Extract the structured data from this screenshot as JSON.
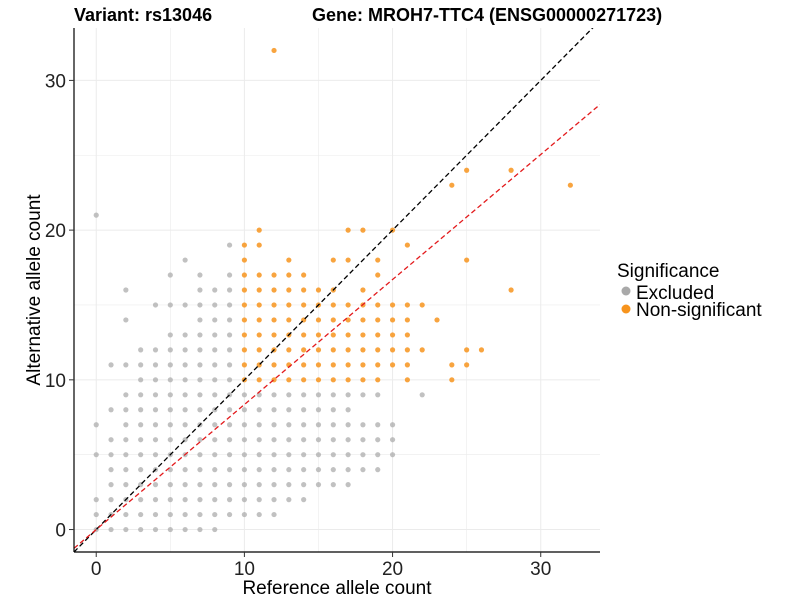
{
  "chart_data": {
    "type": "scatter",
    "title_left": "Variant: rs13046",
    "title_right": "Gene: MROH7-TTC4 (ENSG00000271723)",
    "xlabel": "Reference allele count",
    "ylabel": "Alternative allele count",
    "xlim": [
      -1.5,
      34
    ],
    "ylim": [
      -1.5,
      33.5
    ],
    "xticks": [
      0,
      10,
      20,
      30
    ],
    "yticks": [
      0,
      10,
      20,
      30
    ],
    "grid": true,
    "legend": {
      "title": "Significance",
      "position": "right",
      "entries": [
        {
          "label": "Excluded",
          "color": "#a9a9a9"
        },
        {
          "label": "Non-significant",
          "color": "#f7941d"
        }
      ]
    },
    "reference_lines": [
      {
        "style": "dashed",
        "color": "#000000",
        "slope": 1,
        "intercept": 0
      },
      {
        "style": "dashed",
        "color": "#e31a1c",
        "slope": 0.835,
        "intercept": 0
      }
    ],
    "series": [
      {
        "name": "Excluded",
        "color": "#a9a9a9",
        "points": [
          [
            0,
            21
          ],
          [
            0,
            7
          ],
          [
            0,
            5
          ],
          [
            0,
            2
          ],
          [
            0,
            1
          ],
          [
            0,
            0
          ],
          [
            1,
            11
          ],
          [
            1,
            8
          ],
          [
            1,
            6
          ],
          [
            1,
            5
          ],
          [
            1,
            4
          ],
          [
            1,
            3
          ],
          [
            1,
            2
          ],
          [
            1,
            1
          ],
          [
            1,
            0
          ],
          [
            2,
            16
          ],
          [
            2,
            14
          ],
          [
            2,
            11
          ],
          [
            2,
            9
          ],
          [
            2,
            8
          ],
          [
            2,
            7
          ],
          [
            2,
            6
          ],
          [
            2,
            5
          ],
          [
            2,
            4
          ],
          [
            2,
            3
          ],
          [
            2,
            2
          ],
          [
            2,
            1
          ],
          [
            2,
            0
          ],
          [
            3,
            12
          ],
          [
            3,
            11
          ],
          [
            3,
            10
          ],
          [
            3,
            9
          ],
          [
            3,
            8
          ],
          [
            3,
            7
          ],
          [
            3,
            6
          ],
          [
            3,
            5
          ],
          [
            3,
            4
          ],
          [
            3,
            3
          ],
          [
            3,
            2
          ],
          [
            3,
            1
          ],
          [
            3,
            0
          ],
          [
            4,
            15
          ],
          [
            4,
            12
          ],
          [
            4,
            11
          ],
          [
            4,
            10
          ],
          [
            4,
            9
          ],
          [
            4,
            8
          ],
          [
            4,
            7
          ],
          [
            4,
            6
          ],
          [
            4,
            5
          ],
          [
            4,
            4
          ],
          [
            4,
            3
          ],
          [
            4,
            2
          ],
          [
            4,
            1
          ],
          [
            4,
            0
          ],
          [
            5,
            17
          ],
          [
            5,
            15
          ],
          [
            5,
            13
          ],
          [
            5,
            12
          ],
          [
            5,
            11
          ],
          [
            5,
            10
          ],
          [
            5,
            9
          ],
          [
            5,
            8
          ],
          [
            5,
            7
          ],
          [
            5,
            6
          ],
          [
            5,
            5
          ],
          [
            5,
            4
          ],
          [
            5,
            3
          ],
          [
            5,
            2
          ],
          [
            5,
            1
          ],
          [
            5,
            0
          ],
          [
            6,
            18
          ],
          [
            6,
            15
          ],
          [
            6,
            13
          ],
          [
            6,
            12
          ],
          [
            6,
            11
          ],
          [
            6,
            10
          ],
          [
            6,
            9
          ],
          [
            6,
            8
          ],
          [
            6,
            7
          ],
          [
            6,
            6
          ],
          [
            6,
            5
          ],
          [
            6,
            4
          ],
          [
            6,
            3
          ],
          [
            6,
            2
          ],
          [
            6,
            1
          ],
          [
            6,
            0
          ],
          [
            7,
            17
          ],
          [
            7,
            16
          ],
          [
            7,
            15
          ],
          [
            7,
            14
          ],
          [
            7,
            13
          ],
          [
            7,
            12
          ],
          [
            7,
            11
          ],
          [
            7,
            10
          ],
          [
            7,
            9
          ],
          [
            7,
            8
          ],
          [
            7,
            7
          ],
          [
            7,
            6
          ],
          [
            7,
            5
          ],
          [
            7,
            4
          ],
          [
            7,
            3
          ],
          [
            7,
            2
          ],
          [
            7,
            1
          ],
          [
            7,
            0
          ],
          [
            8,
            16
          ],
          [
            8,
            15
          ],
          [
            8,
            14
          ],
          [
            8,
            13
          ],
          [
            8,
            12
          ],
          [
            8,
            11
          ],
          [
            8,
            10
          ],
          [
            8,
            9
          ],
          [
            8,
            8
          ],
          [
            8,
            7
          ],
          [
            8,
            6
          ],
          [
            8,
            5
          ],
          [
            8,
            4
          ],
          [
            8,
            3
          ],
          [
            8,
            2
          ],
          [
            8,
            1
          ],
          [
            8,
            0
          ],
          [
            9,
            19
          ],
          [
            9,
            17
          ],
          [
            9,
            16
          ],
          [
            9,
            15
          ],
          [
            9,
            14
          ],
          [
            9,
            13
          ],
          [
            9,
            12
          ],
          [
            9,
            11
          ],
          [
            9,
            10
          ],
          [
            9,
            9
          ],
          [
            9,
            8
          ],
          [
            9,
            7
          ],
          [
            9,
            6
          ],
          [
            9,
            5
          ],
          [
            9,
            4
          ],
          [
            9,
            3
          ],
          [
            9,
            2
          ],
          [
            9,
            1
          ],
          [
            10,
            9
          ],
          [
            10,
            8
          ],
          [
            10,
            7
          ],
          [
            10,
            6
          ],
          [
            10,
            5
          ],
          [
            10,
            4
          ],
          [
            10,
            3
          ],
          [
            10,
            2
          ],
          [
            10,
            1
          ],
          [
            11,
            9
          ],
          [
            11,
            8
          ],
          [
            11,
            7
          ],
          [
            11,
            6
          ],
          [
            11,
            5
          ],
          [
            11,
            4
          ],
          [
            11,
            3
          ],
          [
            11,
            2
          ],
          [
            11,
            1
          ],
          [
            12,
            9
          ],
          [
            12,
            8
          ],
          [
            12,
            7
          ],
          [
            12,
            6
          ],
          [
            12,
            5
          ],
          [
            12,
            4
          ],
          [
            12,
            3
          ],
          [
            12,
            2
          ],
          [
            12,
            1
          ],
          [
            13,
            9
          ],
          [
            13,
            8
          ],
          [
            13,
            7
          ],
          [
            13,
            6
          ],
          [
            13,
            5
          ],
          [
            13,
            4
          ],
          [
            13,
            3
          ],
          [
            13,
            2
          ],
          [
            14,
            9
          ],
          [
            14,
            8
          ],
          [
            14,
            7
          ],
          [
            14,
            6
          ],
          [
            14,
            5
          ],
          [
            14,
            4
          ],
          [
            14,
            3
          ],
          [
            14,
            2
          ],
          [
            15,
            9
          ],
          [
            15,
            8
          ],
          [
            15,
            7
          ],
          [
            15,
            6
          ],
          [
            15,
            5
          ],
          [
            15,
            4
          ],
          [
            15,
            3
          ],
          [
            16,
            9
          ],
          [
            16,
            8
          ],
          [
            16,
            7
          ],
          [
            16,
            6
          ],
          [
            16,
            5
          ],
          [
            16,
            4
          ],
          [
            16,
            3
          ],
          [
            17,
            9
          ],
          [
            17,
            8
          ],
          [
            17,
            7
          ],
          [
            17,
            6
          ],
          [
            17,
            5
          ],
          [
            17,
            4
          ],
          [
            17,
            3
          ],
          [
            18,
            9
          ],
          [
            18,
            7
          ],
          [
            18,
            6
          ],
          [
            18,
            5
          ],
          [
            18,
            4
          ],
          [
            19,
            9
          ],
          [
            19,
            7
          ],
          [
            19,
            6
          ],
          [
            19,
            5
          ],
          [
            19,
            4
          ],
          [
            20,
            7
          ],
          [
            20,
            6
          ],
          [
            20,
            5
          ],
          [
            22,
            9
          ]
        ]
      },
      {
        "name": "Non-significant",
        "color": "#f7941d",
        "points": [
          [
            12,
            32
          ],
          [
            11,
            20
          ],
          [
            10,
            19
          ],
          [
            11,
            19
          ],
          [
            10,
            18
          ],
          [
            10,
            17
          ],
          [
            11,
            17
          ],
          [
            12,
            17
          ],
          [
            13,
            18
          ],
          [
            13,
            17
          ],
          [
            14,
            17
          ],
          [
            10,
            16
          ],
          [
            11,
            16
          ],
          [
            12,
            16
          ],
          [
            13,
            16
          ],
          [
            14,
            16
          ],
          [
            15,
            16
          ],
          [
            16,
            16
          ],
          [
            10,
            15
          ],
          [
            11,
            15
          ],
          [
            12,
            15
          ],
          [
            13,
            15
          ],
          [
            14,
            15
          ],
          [
            15,
            15
          ],
          [
            16,
            15
          ],
          [
            17,
            15
          ],
          [
            18,
            15
          ],
          [
            19,
            15
          ],
          [
            20,
            15
          ],
          [
            21,
            15
          ],
          [
            22,
            15
          ],
          [
            10,
            14
          ],
          [
            11,
            14
          ],
          [
            12,
            14
          ],
          [
            13,
            14
          ],
          [
            14,
            14
          ],
          [
            15,
            14
          ],
          [
            16,
            14
          ],
          [
            17,
            14
          ],
          [
            18,
            14
          ],
          [
            19,
            14
          ],
          [
            20,
            14
          ],
          [
            21,
            14
          ],
          [
            23,
            14
          ],
          [
            10,
            13
          ],
          [
            11,
            13
          ],
          [
            12,
            13
          ],
          [
            13,
            13
          ],
          [
            14,
            13
          ],
          [
            15,
            13
          ],
          [
            16,
            13
          ],
          [
            17,
            13
          ],
          [
            18,
            13
          ],
          [
            19,
            13
          ],
          [
            20,
            13
          ],
          [
            21,
            13
          ],
          [
            10,
            12
          ],
          [
            11,
            12
          ],
          [
            12,
            12
          ],
          [
            13,
            12
          ],
          [
            14,
            12
          ],
          [
            15,
            12
          ],
          [
            16,
            12
          ],
          [
            17,
            12
          ],
          [
            18,
            12
          ],
          [
            19,
            12
          ],
          [
            20,
            12
          ],
          [
            21,
            12
          ],
          [
            22,
            12
          ],
          [
            10,
            11
          ],
          [
            11,
            11
          ],
          [
            12,
            11
          ],
          [
            13,
            11
          ],
          [
            14,
            11
          ],
          [
            15,
            11
          ],
          [
            16,
            11
          ],
          [
            17,
            11
          ],
          [
            18,
            11
          ],
          [
            19,
            11
          ],
          [
            20,
            11
          ],
          [
            21,
            11
          ],
          [
            24,
            11
          ],
          [
            26,
            12
          ],
          [
            25,
            12
          ],
          [
            10,
            10
          ],
          [
            11,
            10
          ],
          [
            12,
            10
          ],
          [
            13,
            10
          ],
          [
            14,
            10
          ],
          [
            15,
            10
          ],
          [
            16,
            10
          ],
          [
            17,
            10
          ],
          [
            18,
            10
          ],
          [
            19,
            10
          ],
          [
            21,
            10
          ],
          [
            24,
            10
          ],
          [
            25,
            11
          ],
          [
            17,
            20
          ],
          [
            18,
            20
          ],
          [
            20,
            20
          ],
          [
            21,
            19
          ],
          [
            16,
            18
          ],
          [
            17,
            18
          ],
          [
            19,
            18
          ],
          [
            25,
            18
          ],
          [
            24,
            23
          ],
          [
            25,
            24
          ],
          [
            28,
            24
          ],
          [
            32,
            23
          ],
          [
            28,
            16
          ],
          [
            18,
            16
          ],
          [
            19,
            17
          ]
        ]
      }
    ]
  }
}
